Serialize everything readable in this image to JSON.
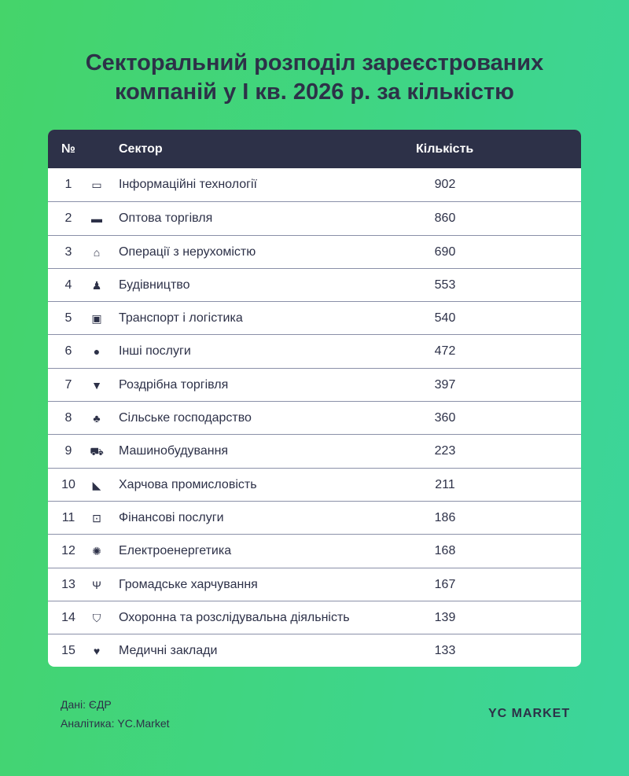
{
  "title_line1": "Секторальний розподіл зареєстрованих",
  "title_line2": "компаній у І кв. 2026 р. за кількістю",
  "chart_data": {
    "type": "table",
    "columns": [
      "№",
      "Сектор",
      "Кількість"
    ],
    "rows": [
      {
        "n": "1",
        "icon": "laptop-icon",
        "glyph": "▭",
        "sector": "Інформаційні технології",
        "count": "902"
      },
      {
        "n": "2",
        "icon": "warehouse-icon",
        "glyph": "▬",
        "sector": "Оптова торгівля",
        "count": "860"
      },
      {
        "n": "3",
        "icon": "house-icon",
        "glyph": "⌂",
        "sector": "Операції з нерухомістю",
        "count": "690"
      },
      {
        "n": "4",
        "icon": "construction-worker-icon",
        "glyph": "♟",
        "sector": "Будівництво",
        "count": "553"
      },
      {
        "n": "5",
        "icon": "bus-icon",
        "glyph": "▣",
        "sector": "Транспорт і логістика",
        "count": "540"
      },
      {
        "n": "6",
        "icon": "more-dots-icon",
        "glyph": "●",
        "sector": "Інші послуги",
        "count": "472"
      },
      {
        "n": "7",
        "icon": "basket-icon",
        "glyph": "▼",
        "sector": "Роздрібна торгівля",
        "count": "397"
      },
      {
        "n": "8",
        "icon": "seedling-icon",
        "glyph": "♣",
        "sector": "Сільське господарство",
        "count": "360"
      },
      {
        "n": "9",
        "icon": "truck-icon",
        "glyph": "⛟",
        "sector": "Машинобудування",
        "count": "223"
      },
      {
        "n": "10",
        "icon": "pizza-slice-icon",
        "glyph": "◣",
        "sector": "Харчова промисловість",
        "count": "211"
      },
      {
        "n": "11",
        "icon": "money-bill-icon",
        "glyph": "⊡",
        "sector": "Фінансові послуги",
        "count": "186"
      },
      {
        "n": "12",
        "icon": "lightbulb-icon",
        "glyph": "✺",
        "sector": "Електроенергетика",
        "count": "168"
      },
      {
        "n": "13",
        "icon": "utensils-icon",
        "glyph": "Ψ",
        "sector": "Громадське харчування",
        "count": "167"
      },
      {
        "n": "14",
        "icon": "shield-star-icon",
        "glyph": "⛉",
        "sector": "Охоронна та розслідувальна діяльність",
        "count": "139"
      },
      {
        "n": "15",
        "icon": "heart-pulse-icon",
        "glyph": "♥",
        "sector": "Медичні заклади",
        "count": "133"
      }
    ]
  },
  "footer": {
    "source": "Дані: ЄДР",
    "analytics": "Аналітика: YC.Market",
    "logo": "YC MARKET"
  },
  "colors": {
    "header": "#2d3148",
    "background_left": "#45d46a",
    "background_right": "#3cd59c"
  }
}
